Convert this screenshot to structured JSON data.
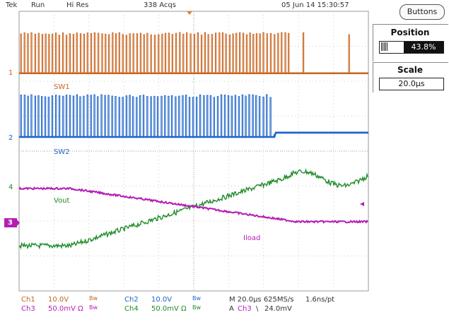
{
  "status": {
    "brand": "Tek",
    "run_state": "Run",
    "acq_mode": "Hi Res",
    "acq_count": "338 Acqs",
    "datetime": "05 Jun 14 15:30:57"
  },
  "buttons_label": "Buttons",
  "position": {
    "title": "Position",
    "value": "43.8%"
  },
  "scale": {
    "title": "Scale",
    "value": "20.0µs"
  },
  "channels": {
    "ch1": {
      "marker": "1",
      "label": "SW1",
      "color": "#c8641e"
    },
    "ch2": {
      "marker": "2",
      "label": "SW2",
      "color": "#1e64c8"
    },
    "ch3": {
      "marker": "3",
      "label": "Iload",
      "color": "#b41eb4"
    },
    "ch4": {
      "marker": "4",
      "label": "Vout",
      "color": "#1e8c28"
    }
  },
  "readout": {
    "ch1_name": "Ch1",
    "ch1_scale": "10.0V",
    "ch1_bw": "Bw",
    "ch2_name": "Ch2",
    "ch2_scale": "10.0V",
    "ch2_bw": "Bw",
    "ch3_name": "Ch3",
    "ch3_scale": "50.0mV",
    "ch3_unit": "Ω",
    "ch3_bw": "Bw",
    "ch4_name": "Ch4",
    "ch4_scale": "50.0mV",
    "ch4_unit": "Ω",
    "ch4_bw": "Bw",
    "timebase": "M 20.0µs 625MS/s",
    "resolution": "1.6ns/pt",
    "trigger_prefix": "A",
    "trigger_ch": "Ch3",
    "trigger_slope": "\\",
    "trigger_level": "24.0mV"
  }
}
